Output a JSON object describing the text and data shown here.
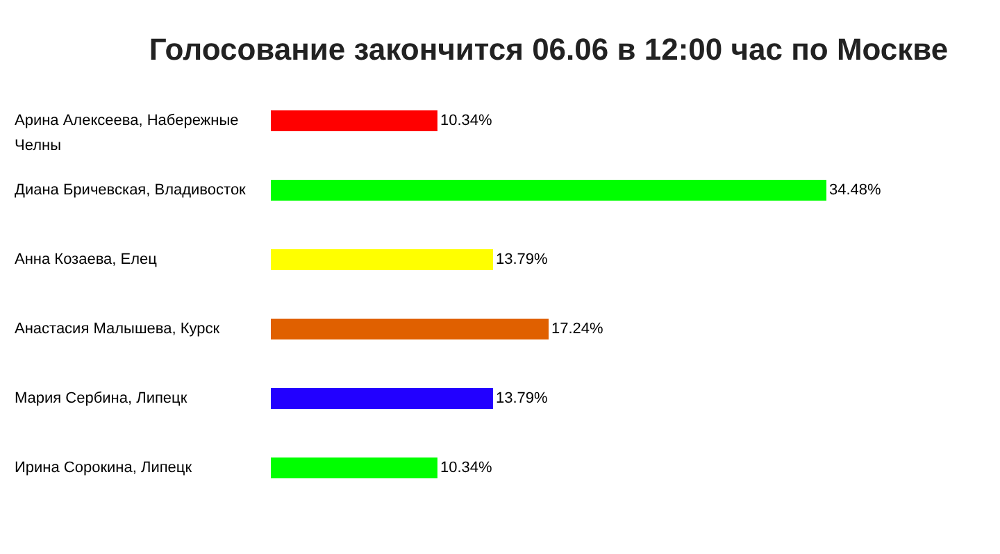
{
  "chart_data": {
    "type": "bar",
    "orientation": "horizontal",
    "title": "Голосование закончится 06.06 в 12:00 час по Москве",
    "categories": [
      "Арина Алексеева, Набережные Челны",
      "Диана Бричевская, Владивосток",
      "Анна Козаева, Елец",
      "Анастасия Малышева, Курск",
      "Мария Сербина, Липецк",
      "Ирина Сорокина, Липецк"
    ],
    "values": [
      10.34,
      34.48,
      13.79,
      17.24,
      13.79,
      10.34
    ],
    "colors": [
      "#ff0000",
      "#00ff00",
      "#ffff00",
      "#e06000",
      "#2200ff",
      "#00ff00"
    ],
    "value_labels": [
      "10.34%",
      "34.48%",
      "13.79%",
      "17.24%",
      "13.79%",
      "10.34%"
    ]
  }
}
